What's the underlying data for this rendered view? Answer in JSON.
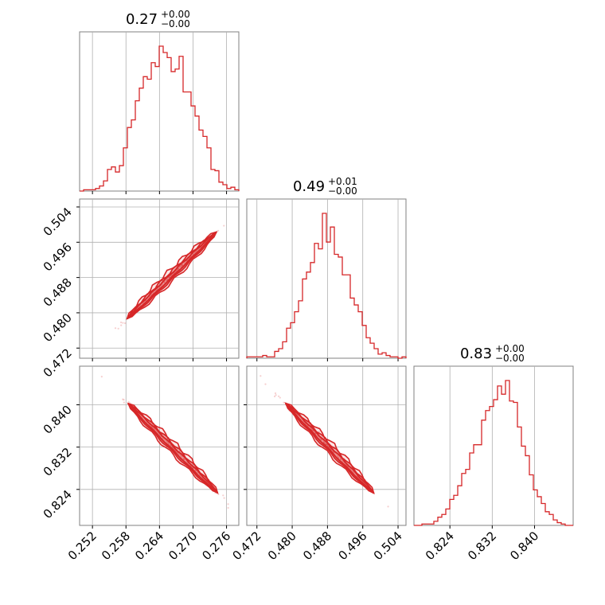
{
  "colors": {
    "accent": "#d62728",
    "frame": "#808080",
    "grid": "#b0b0b0"
  },
  "chart_data": {
    "type": "corner",
    "grid": true,
    "parameters": [
      {
        "title_value": "0.27",
        "title_upper": "+0.00",
        "title_lower": "−0.00",
        "range": [
          0.2497,
          0.2782
        ],
        "ticks": [
          "0.252",
          "0.258",
          "0.264",
          "0.270",
          "0.276"
        ]
      },
      {
        "title_value": "0.49",
        "title_upper": "+0.01",
        "title_lower": "−0.00",
        "range": [
          0.4697,
          0.5058
        ],
        "ticks": [
          "0.472",
          "0.480",
          "0.488",
          "0.496",
          "0.504"
        ]
      },
      {
        "title_value": "0.83",
        "title_upper": "+0.00",
        "title_lower": "−0.00",
        "range": [
          0.8172,
          0.8473
        ],
        "ticks": [
          "0.824",
          "0.832",
          "0.840"
        ]
      }
    ],
    "histograms": [
      {
        "param": 0,
        "counts": [
          0,
          1,
          1,
          1,
          2,
          4,
          8,
          17,
          19,
          15,
          20,
          34,
          50,
          56,
          71,
          81,
          90,
          88,
          101,
          98,
          114,
          109,
          105,
          94,
          96,
          106,
          78,
          78,
          67,
          59,
          48,
          43,
          34,
          17,
          16,
          7,
          5,
          2,
          3,
          1
        ]
      },
      {
        "param": 1,
        "counts": [
          1,
          1,
          1,
          1,
          2,
          1,
          1,
          5,
          7,
          12,
          22,
          26,
          34,
          42,
          58,
          63,
          70,
          84,
          80,
          106,
          85,
          96,
          76,
          74,
          61,
          61,
          44,
          39,
          34,
          24,
          15,
          11,
          7,
          3,
          4,
          2,
          1,
          1,
          0,
          1
        ]
      },
      {
        "param": 2,
        "counts": [
          0,
          0,
          1,
          1,
          1,
          3,
          6,
          8,
          12,
          19,
          22,
          29,
          38,
          41,
          53,
          59,
          59,
          77,
          84,
          87,
          92,
          102,
          96,
          106,
          91,
          90,
          72,
          58,
          51,
          37,
          26,
          21,
          16,
          10,
          8,
          4,
          2,
          1,
          0,
          0
        ]
      }
    ],
    "contours": [
      {
        "x_param": 0,
        "y_param": 1,
        "slope": 0.97,
        "center": [
          0.2662,
          0.4885
        ],
        "x_span": [
          0.2585,
          0.2745
        ]
      },
      {
        "x_param": 0,
        "y_param": 2,
        "slope": -1.0,
        "center": [
          0.2664,
          0.8318
        ],
        "x_span": [
          0.2585,
          0.2745
        ]
      },
      {
        "x_param": 1,
        "y_param": 2,
        "slope": -1.02,
        "center": [
          0.4885,
          0.8318
        ],
        "x_span": [
          0.4785,
          0.4985
        ]
      }
    ]
  }
}
